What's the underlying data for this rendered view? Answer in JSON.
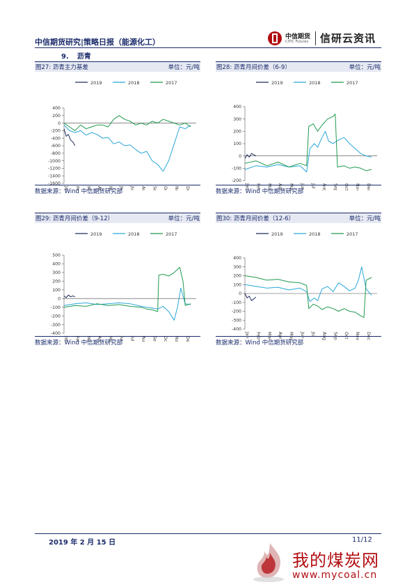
{
  "header": {
    "title": "中信期货研究|策略日报（能源化工）",
    "logo_cn": "中信期货",
    "logo_en": "CITIC Futures",
    "brand": "信研云资讯"
  },
  "section": {
    "number": "9.",
    "title": "沥青"
  },
  "colors": {
    "s2019": "#1f2d5c",
    "s2018": "#2aa7d8",
    "s2017": "#1f9a4f",
    "accent": "#1a2b6b"
  },
  "panels": [
    {
      "title": "图27: 沥青主力基差",
      "unit": "单位：元/吨",
      "source": "数据来源：Wind  中信期货研究部"
    },
    {
      "title": "图28: 沥青月间价差（6-9）",
      "unit": "单位：元/吨",
      "source": "数据来源：Wind  中信期货研究部"
    },
    {
      "title": "图29: 沥青月间价差（9-12）",
      "unit": "单位：元/吨",
      "source": "数据来源：Wind  中信期货研究部"
    },
    {
      "title": "图30: 沥青月间价差（12-6）",
      "unit": "单位：元/吨",
      "source": "数据来源：Wind  中信期货研究部"
    }
  ],
  "chart_data": [
    {
      "type": "line",
      "xlabel": "",
      "ylabel": "",
      "x": [
        "Jan",
        "Feb",
        "Mar",
        "Apr",
        "May",
        "Jun",
        "Jul",
        "Aug",
        "Sep",
        "Oct",
        "Nov",
        "Dec"
      ],
      "yticks": [
        400,
        200,
        0,
        -200,
        -400,
        -600,
        -800,
        -1000,
        -1200,
        -1400,
        -1600
      ],
      "ylim": [
        -1600,
        400
      ],
      "legend": "top",
      "series": [
        {
          "name": "2019",
          "points": [
            [
              0,
              -150
            ],
            [
              0.2,
              -350
            ],
            [
              0.4,
              -300
            ],
            [
              0.6,
              -450
            ],
            [
              0.8,
              -500
            ],
            [
              1.0,
              -600
            ]
          ]
        },
        {
          "name": "2018",
          "points": [
            [
              0,
              -50
            ],
            [
              0.5,
              -200
            ],
            [
              1,
              -250
            ],
            [
              1.5,
              -200
            ],
            [
              2,
              -320
            ],
            [
              2.5,
              -250
            ],
            [
              3,
              -300
            ],
            [
              3.5,
              -400
            ],
            [
              4,
              -380
            ],
            [
              4.5,
              -550
            ],
            [
              5,
              -500
            ],
            [
              5.5,
              -600
            ],
            [
              6,
              -580
            ],
            [
              6.5,
              -700
            ],
            [
              7,
              -800
            ],
            [
              7.5,
              -750
            ],
            [
              8,
              -1000
            ],
            [
              8.5,
              -1100
            ],
            [
              9,
              -1280
            ],
            [
              9.5,
              -1000
            ],
            [
              10,
              -550
            ],
            [
              10.5,
              -100
            ],
            [
              11,
              -150
            ],
            [
              11.5,
              -50
            ]
          ]
        },
        {
          "name": "2017",
          "points": [
            [
              0,
              0
            ],
            [
              0.5,
              -100
            ],
            [
              1,
              -200
            ],
            [
              1.5,
              -50
            ],
            [
              2,
              -150
            ],
            [
              2.5,
              -100
            ],
            [
              3,
              -50
            ],
            [
              3.5,
              -50
            ],
            [
              4,
              -100
            ],
            [
              4.5,
              100
            ],
            [
              5,
              200
            ],
            [
              5.5,
              100
            ],
            [
              6,
              50
            ],
            [
              6.5,
              -50
            ],
            [
              7,
              0
            ],
            [
              7.5,
              -50
            ],
            [
              8,
              50
            ],
            [
              8.5,
              0
            ],
            [
              9,
              100
            ],
            [
              9.5,
              50
            ],
            [
              10,
              0
            ],
            [
              10.5,
              -50
            ],
            [
              11,
              0
            ],
            [
              11.5,
              -100
            ]
          ]
        }
      ]
    },
    {
      "type": "line",
      "xlabel": "",
      "ylabel": "",
      "x": [
        "Jan",
        "Feb",
        "Mar",
        "Apr",
        "May",
        "Jun",
        "Jul",
        "Aug",
        "Sep",
        "Oct",
        "Nov",
        "Dec"
      ],
      "yticks": [
        400,
        300,
        200,
        100,
        0,
        -100,
        -200
      ],
      "ylim": [
        -200,
        400
      ],
      "legend": "top",
      "series": [
        {
          "name": "2019",
          "points": [
            [
              0,
              -20
            ],
            [
              0.2,
              10
            ],
            [
              0.4,
              -10
            ],
            [
              0.6,
              20
            ],
            [
              0.8,
              10
            ],
            [
              1.0,
              0
            ]
          ]
        },
        {
          "name": "2018",
          "points": [
            [
              0,
              -110
            ],
            [
              1,
              -80
            ],
            [
              2,
              -90
            ],
            [
              3,
              -70
            ],
            [
              4,
              -90
            ],
            [
              5,
              -80
            ],
            [
              5.6,
              -130
            ],
            [
              5.9,
              60
            ],
            [
              6.3,
              100
            ],
            [
              6.6,
              70
            ],
            [
              7,
              150
            ],
            [
              7.3,
              200
            ],
            [
              7.6,
              120
            ],
            [
              8,
              100
            ],
            [
              8.5,
              130
            ],
            [
              9,
              150
            ],
            [
              9.5,
              100
            ],
            [
              10,
              60
            ],
            [
              10.5,
              20
            ],
            [
              11,
              0
            ],
            [
              11.5,
              -10
            ]
          ]
        },
        {
          "name": "2017",
          "points": [
            [
              0,
              -60
            ],
            [
              1,
              -40
            ],
            [
              2,
              -80
            ],
            [
              3,
              -50
            ],
            [
              4,
              -90
            ],
            [
              5,
              -60
            ],
            [
              5.6,
              -80
            ],
            [
              5.8,
              240
            ],
            [
              6.2,
              260
            ],
            [
              6.6,
              200
            ],
            [
              7,
              250
            ],
            [
              7.5,
              300
            ],
            [
              8,
              320
            ],
            [
              8.2,
              340
            ],
            [
              8.4,
              -90
            ],
            [
              9,
              -80
            ],
            [
              9.5,
              -100
            ],
            [
              10,
              -90
            ],
            [
              10.5,
              -100
            ],
            [
              11,
              -120
            ],
            [
              11.5,
              -110
            ]
          ]
        }
      ]
    },
    {
      "type": "line",
      "xlabel": "",
      "ylabel": "",
      "x": [
        "Jan",
        "Feb",
        "Mar",
        "Apr",
        "May",
        "Jun",
        "Jul",
        "Aug",
        "Sep",
        "Oct",
        "Nov",
        "Dec"
      ],
      "yticks": [
        500,
        400,
        300,
        200,
        100,
        0,
        -100,
        -200,
        -300,
        -400
      ],
      "ylim": [
        -400,
        500
      ],
      "legend": "top",
      "series": [
        {
          "name": "2019",
          "points": [
            [
              0,
              30
            ],
            [
              0.2,
              10
            ],
            [
              0.4,
              40
            ],
            [
              0.6,
              20
            ],
            [
              0.8,
              30
            ],
            [
              1.0,
              20
            ]
          ]
        },
        {
          "name": "2018",
          "points": [
            [
              0,
              -80
            ],
            [
              1,
              -60
            ],
            [
              2,
              -50
            ],
            [
              3,
              -70
            ],
            [
              4,
              -60
            ],
            [
              5,
              -50
            ],
            [
              6,
              -60
            ],
            [
              7,
              -90
            ],
            [
              7.5,
              -100
            ],
            [
              8,
              -110
            ],
            [
              8.5,
              -120
            ],
            [
              9,
              -90
            ],
            [
              9.5,
              -150
            ],
            [
              10,
              -250
            ],
            [
              10.3,
              -100
            ],
            [
              10.6,
              120
            ],
            [
              11,
              -60
            ],
            [
              11.5,
              -70
            ]
          ]
        },
        {
          "name": "2017",
          "points": [
            [
              0,
              -100
            ],
            [
              1,
              -80
            ],
            [
              2,
              -90
            ],
            [
              3,
              -60
            ],
            [
              4,
              -80
            ],
            [
              5,
              -70
            ],
            [
              6,
              -90
            ],
            [
              7,
              -100
            ],
            [
              7.5,
              -120
            ],
            [
              8,
              -130
            ],
            [
              8.5,
              -150
            ],
            [
              8.6,
              270
            ],
            [
              9,
              280
            ],
            [
              9.5,
              260
            ],
            [
              10,
              300
            ],
            [
              10.5,
              360
            ],
            [
              10.8,
              200
            ],
            [
              11,
              -80
            ],
            [
              11.5,
              -60
            ]
          ]
        }
      ]
    },
    {
      "type": "line",
      "xlabel": "",
      "ylabel": "",
      "x": [
        "Jan",
        "Feb",
        "Mar",
        "Apr",
        "May",
        "Jun",
        "Jul",
        "Aug",
        "Sep",
        "Oct",
        "Nov",
        "Dec"
      ],
      "yticks": [
        400,
        300,
        200,
        100,
        0,
        -100,
        -200,
        -300,
        -400
      ],
      "ylim": [
        -400,
        400
      ],
      "legend": "top",
      "series": [
        {
          "name": "2019",
          "points": [
            [
              0,
              0
            ],
            [
              0.2,
              -50
            ],
            [
              0.4,
              -30
            ],
            [
              0.6,
              -80
            ],
            [
              0.8,
              -60
            ],
            [
              1.0,
              -40
            ]
          ]
        },
        {
          "name": "2018",
          "points": [
            [
              0,
              100
            ],
            [
              1,
              80
            ],
            [
              2,
              60
            ],
            [
              3,
              70
            ],
            [
              4,
              40
            ],
            [
              5,
              60
            ],
            [
              5.6,
              20
            ],
            [
              5.9,
              -90
            ],
            [
              6.3,
              -50
            ],
            [
              6.6,
              -80
            ],
            [
              7,
              50
            ],
            [
              7.5,
              80
            ],
            [
              8,
              20
            ],
            [
              8.5,
              120
            ],
            [
              9,
              80
            ],
            [
              9.5,
              30
            ],
            [
              10,
              60
            ],
            [
              10.3,
              150
            ],
            [
              10.6,
              300
            ],
            [
              11,
              50
            ],
            [
              11.5,
              -20
            ]
          ]
        },
        {
          "name": "2017",
          "points": [
            [
              0,
              200
            ],
            [
              1,
              180
            ],
            [
              2,
              150
            ],
            [
              3,
              160
            ],
            [
              4,
              130
            ],
            [
              5,
              120
            ],
            [
              5.6,
              90
            ],
            [
              5.8,
              -170
            ],
            [
              6.2,
              -120
            ],
            [
              6.6,
              -140
            ],
            [
              7,
              -180
            ],
            [
              7.5,
              -150
            ],
            [
              8,
              -170
            ],
            [
              8.5,
              -200
            ],
            [
              9,
              -170
            ],
            [
              9.5,
              -200
            ],
            [
              10,
              -210
            ],
            [
              10.5,
              -250
            ],
            [
              10.8,
              -270
            ],
            [
              11,
              150
            ],
            [
              11.5,
              180
            ]
          ]
        }
      ]
    }
  ],
  "footer": {
    "date": "2019 年 2 月 15 日",
    "page": "11/12"
  },
  "watermark": {
    "cn": "我的煤炭网",
    "url": "www.mycoal.cn"
  }
}
